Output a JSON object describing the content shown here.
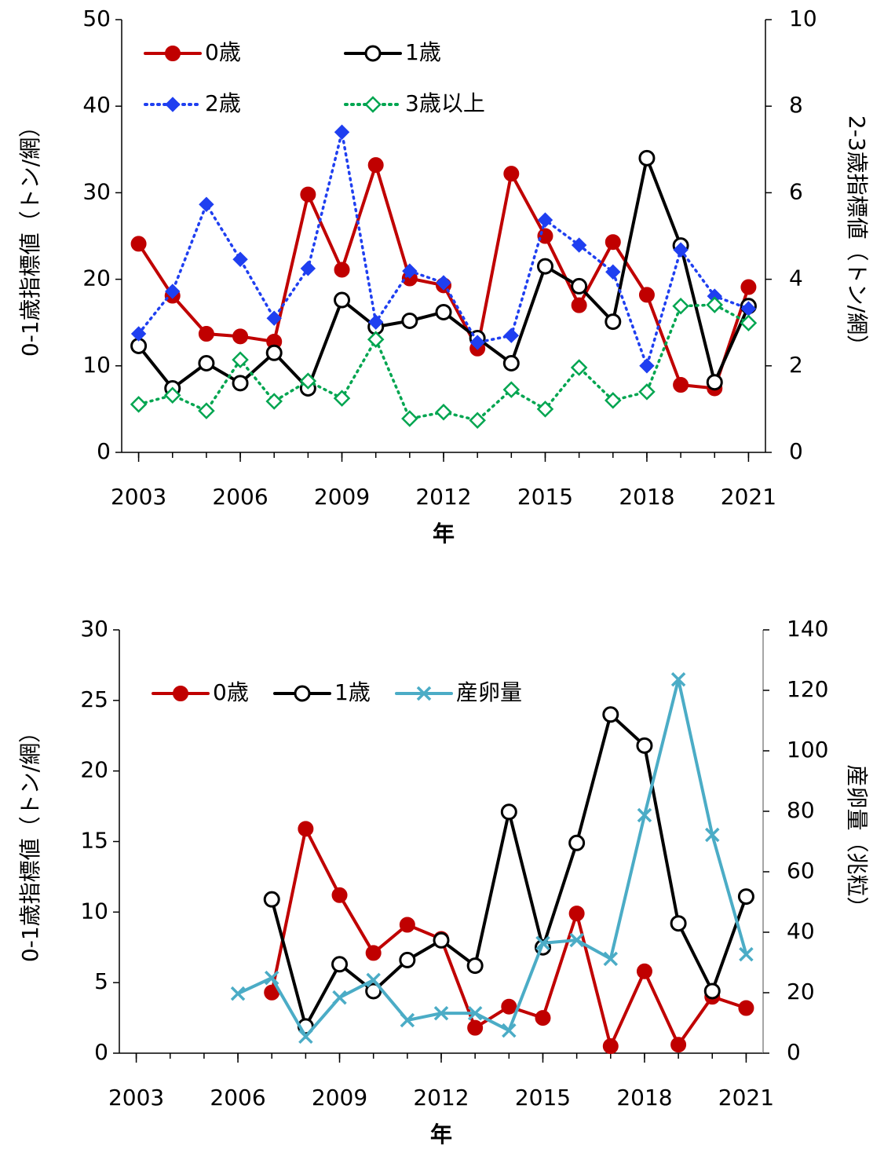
{
  "chart_data": [
    {
      "type": "line",
      "x": [
        2003,
        2004,
        2005,
        2006,
        2007,
        2008,
        2009,
        2010,
        2011,
        2012,
        2013,
        2014,
        2015,
        2016,
        2017,
        2018,
        2019,
        2020,
        2021
      ],
      "xlim": [
        2002.5,
        2021.5
      ],
      "xticks": [
        2003,
        2006,
        2009,
        2012,
        2015,
        2018,
        2021
      ],
      "ylim": [
        0,
        50
      ],
      "yticks": [
        0,
        10,
        20,
        30,
        40,
        50
      ],
      "y2lim": [
        0,
        10
      ],
      "y2ticks": [
        0,
        2,
        4,
        6,
        8,
        10
      ],
      "xlabel": "年",
      "ylabel": "0-1歳指標値（トン/網）",
      "y2label": "2-3歳指標値（トン/網）",
      "legend": "upper left",
      "series": [
        {
          "name": "0歳",
          "color": "#c00000",
          "marker": "circle",
          "dash": "solid",
          "values": [
            24.1,
            18.1,
            13.7,
            13.4,
            12.8,
            29.8,
            21.1,
            33.2,
            20.1,
            19.3,
            12.0,
            32.2,
            25.0,
            17.0,
            24.3,
            18.2,
            7.8,
            7.4,
            19.1
          ]
        },
        {
          "name": "1歳",
          "color": "#000000",
          "marker": "open-circle",
          "dash": "solid",
          "values": [
            12.3,
            7.4,
            10.3,
            8.0,
            11.5,
            7.4,
            17.6,
            14.5,
            15.2,
            16.2,
            13.2,
            10.3,
            21.5,
            19.2,
            15.1,
            34.0,
            23.9,
            8.1,
            16.9
          ]
        },
        {
          "name": "2歳",
          "color": "#1f3ff0",
          "marker": "diamond",
          "dash": "dotted",
          "axis": "y2",
          "values": [
            2.74,
            3.72,
            5.73,
            4.46,
            3.1,
            4.25,
            7.4,
            3.01,
            4.19,
            3.92,
            2.54,
            2.7,
            5.37,
            4.79,
            4.17,
            2.0,
            4.68,
            3.61,
            3.32
          ]
        },
        {
          "name": "3歳以上",
          "color": "#00a550",
          "marker": "open-diamond",
          "dash": "dotted",
          "axis": "y2",
          "values": [
            1.11,
            1.32,
            0.96,
            2.14,
            1.18,
            1.65,
            1.25,
            2.61,
            0.78,
            0.93,
            0.74,
            1.45,
            1.0,
            1.96,
            1.2,
            1.4,
            3.38,
            3.41,
            2.99
          ]
        }
      ]
    },
    {
      "type": "line",
      "x": [
        2003,
        2004,
        2005,
        2006,
        2007,
        2008,
        2009,
        2010,
        2011,
        2012,
        2013,
        2014,
        2015,
        2016,
        2017,
        2018,
        2019,
        2020,
        2021
      ],
      "xlim": [
        2002.5,
        2021.5
      ],
      "xticks": [
        2003,
        2006,
        2009,
        2012,
        2015,
        2018,
        2021
      ],
      "ylim": [
        0,
        30
      ],
      "yticks": [
        0,
        5,
        10,
        15,
        20,
        25,
        30
      ],
      "y2lim": [
        0,
        140
      ],
      "y2ticks": [
        0,
        20,
        40,
        60,
        80,
        100,
        120,
        140
      ],
      "xlabel": "年",
      "ylabel": "0-1歳指標値（トン/網）",
      "y2label": "産卵量（兆粒）",
      "legend": "upper left",
      "series": [
        {
          "name": "0歳",
          "color": "#c00000",
          "marker": "circle",
          "dash": "solid",
          "values": [
            null,
            null,
            null,
            null,
            4.3,
            15.9,
            11.2,
            7.1,
            9.1,
            8.1,
            1.8,
            3.3,
            2.5,
            9.9,
            0.5,
            5.8,
            0.6,
            4.0,
            3.2
          ]
        },
        {
          "name": "1歳",
          "color": "#000000",
          "marker": "open-circle",
          "dash": "solid",
          "values": [
            null,
            null,
            null,
            null,
            10.9,
            1.9,
            6.3,
            4.4,
            6.6,
            8.0,
            6.2,
            17.1,
            7.5,
            14.9,
            24.0,
            21.8,
            9.2,
            4.4,
            11.1
          ]
        },
        {
          "name": "産卵量",
          "color": "#4bacc6",
          "marker": "x",
          "dash": "solid",
          "axis": "y2",
          "values": [
            null,
            null,
            null,
            19.7,
            24.9,
            5.5,
            18.4,
            24.2,
            10.9,
            13.2,
            13.2,
            7.5,
            36.4,
            37.4,
            31.2,
            78.7,
            123.6,
            72.2,
            32.7
          ]
        }
      ]
    }
  ]
}
